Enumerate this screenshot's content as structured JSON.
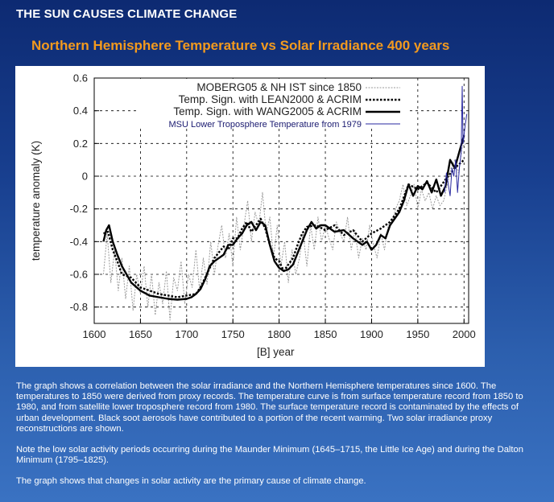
{
  "page": {
    "heading": "THE SUN CAUSES CLIMATE CHANGE",
    "chart_title": "Northern Hemisphere Temperature vs Solar Irradiance 400 years"
  },
  "caption": {
    "paragraph1": "The graph shows a correlation between the solar irradiance and the Northern Hemisphere temperatures since 1600. The temperatures to 1850 were derived from proxy records. The temperature curve is from surface temperature record from 1850 to 1980, and from satellite lower troposphere record from 1980. The surface temperature record is contaminated by the effects of urban development. Black soot aerosols have contributed to a portion of the recent warming. Two solar irradiance proxy reconstructions are shown.",
    "paragraph2": "Note the low solar activity periods occurring during the Maunder Minimum (1645–1715, the Little Ice Age) and during the Dalton Minimum (1795–1825).",
    "paragraph3": "The graph shows that changes in solar activity are the primary cause of climate change."
  },
  "colors": {
    "heading": "#ffffff",
    "chart_title": "#f39a1e",
    "background_top": "#0d2a72",
    "background_bottom": "#3a72c2",
    "grid": "#000000",
    "moberg": "#9a9a9a",
    "msu": "#2a2aa0"
  },
  "chart_data": {
    "type": "line",
    "xlabel": "[B]  year",
    "ylabel": "temperature anomaly (K)",
    "xlim": [
      1600,
      2005
    ],
    "ylim": [
      -0.9,
      0.6
    ],
    "grid": true,
    "grid_style": "dashed",
    "legend_position": "top-right",
    "x_ticks": [
      "1600",
      "1650",
      "1700",
      "1750",
      "1800",
      "1850",
      "1900",
      "1950",
      "2000"
    ],
    "y_ticks": [
      "0.6",
      "0.4",
      "0.2",
      "0",
      "-0.2",
      "-0.4",
      "-0.6",
      "-0.8"
    ],
    "series": [
      {
        "name": "MOBERG05 & NH IST since 1850",
        "style": "thin-gray",
        "x": [
          1610,
          1614,
          1618,
          1622,
          1626,
          1630,
          1634,
          1638,
          1642,
          1646,
          1650,
          1654,
          1658,
          1662,
          1666,
          1670,
          1674,
          1678,
          1682,
          1686,
          1690,
          1694,
          1698,
          1702,
          1706,
          1710,
          1714,
          1718,
          1722,
          1726,
          1730,
          1734,
          1738,
          1742,
          1746,
          1750,
          1754,
          1758,
          1762,
          1766,
          1770,
          1774,
          1778,
          1782,
          1786,
          1790,
          1794,
          1798,
          1802,
          1806,
          1810,
          1814,
          1818,
          1822,
          1826,
          1830,
          1834,
          1838,
          1842,
          1846,
          1850,
          1854,
          1858,
          1862,
          1866,
          1870,
          1874,
          1878,
          1882,
          1886,
          1890,
          1894,
          1898,
          1902,
          1906,
          1910,
          1914,
          1918,
          1922,
          1926,
          1930,
          1934,
          1938,
          1942,
          1946,
          1950,
          1954,
          1958,
          1962,
          1966,
          1970,
          1974,
          1978,
          1982,
          1986,
          1990,
          1994,
          1998,
          2002
        ],
        "values": [
          -0.6,
          -0.35,
          -0.65,
          -0.45,
          -0.7,
          -0.5,
          -0.75,
          -0.55,
          -0.82,
          -0.6,
          -0.72,
          -0.55,
          -0.8,
          -0.6,
          -0.85,
          -0.65,
          -0.78,
          -0.58,
          -0.88,
          -0.62,
          -0.7,
          -0.52,
          -0.78,
          -0.6,
          -0.68,
          -0.45,
          -0.7,
          -0.5,
          -0.66,
          -0.4,
          -0.6,
          -0.42,
          -0.3,
          -0.5,
          -0.35,
          -0.55,
          -0.25,
          -0.45,
          -0.3,
          -0.15,
          -0.4,
          -0.22,
          -0.3,
          -0.1,
          -0.35,
          -0.25,
          -0.5,
          -0.3,
          -0.55,
          -0.4,
          -0.65,
          -0.45,
          -0.6,
          -0.5,
          -0.35,
          -0.55,
          -0.3,
          -0.45,
          -0.25,
          -0.4,
          -0.3,
          -0.38,
          -0.45,
          -0.28,
          -0.35,
          -0.4,
          -0.25,
          -0.45,
          -0.33,
          -0.5,
          -0.38,
          -0.45,
          -0.3,
          -0.42,
          -0.5,
          -0.35,
          -0.45,
          -0.3,
          -0.28,
          -0.2,
          -0.15,
          -0.05,
          -0.18,
          -0.12,
          -0.05,
          -0.2,
          -0.08,
          -0.15,
          -0.1,
          -0.2,
          -0.12,
          -0.18,
          -0.15,
          -0.05,
          0.05,
          0.1,
          0.02,
          0.18,
          0.2
        ]
      },
      {
        "name": "Temp. Sign. with LEAN2000 & ACRIM",
        "style": "dotted-black",
        "x": [
          1610,
          1615,
          1620,
          1625,
          1630,
          1640,
          1650,
          1660,
          1670,
          1680,
          1690,
          1700,
          1710,
          1715,
          1720,
          1730,
          1740,
          1745,
          1750,
          1755,
          1760,
          1765,
          1770,
          1775,
          1780,
          1785,
          1790,
          1795,
          1800,
          1805,
          1810,
          1815,
          1820,
          1825,
          1830,
          1840,
          1850,
          1860,
          1870,
          1880,
          1890,
          1900,
          1910,
          1920,
          1930,
          1940,
          1950,
          1960,
          1970,
          1980,
          1990,
          2000
        ],
        "values": [
          -0.35,
          -0.34,
          -0.45,
          -0.52,
          -0.6,
          -0.62,
          -0.68,
          -0.7,
          -0.72,
          -0.73,
          -0.74,
          -0.73,
          -0.72,
          -0.68,
          -0.62,
          -0.5,
          -0.43,
          -0.45,
          -0.38,
          -0.38,
          -0.32,
          -0.28,
          -0.34,
          -0.3,
          -0.26,
          -0.32,
          -0.42,
          -0.5,
          -0.52,
          -0.58,
          -0.54,
          -0.5,
          -0.42,
          -0.35,
          -0.31,
          -0.3,
          -0.33,
          -0.3,
          -0.36,
          -0.33,
          -0.4,
          -0.35,
          -0.32,
          -0.28,
          -0.2,
          -0.05,
          -0.08,
          -0.04,
          -0.1,
          -0.02,
          0.05,
          0.1
        ]
      },
      {
        "name": "Temp. Sign. with WANG2005 & ACRIM",
        "style": "thick-black",
        "x": [
          1610,
          1613,
          1616,
          1620,
          1625,
          1630,
          1640,
          1650,
          1660,
          1670,
          1680,
          1690,
          1700,
          1705,
          1710,
          1715,
          1720,
          1725,
          1730,
          1735,
          1740,
          1745,
          1750,
          1755,
          1760,
          1765,
          1770,
          1775,
          1780,
          1785,
          1790,
          1795,
          1800,
          1805,
          1810,
          1815,
          1820,
          1825,
          1830,
          1835,
          1840,
          1845,
          1850,
          1860,
          1870,
          1880,
          1890,
          1895,
          1900,
          1905,
          1910,
          1915,
          1920,
          1930,
          1935,
          1940,
          1945,
          1950,
          1955,
          1960,
          1965,
          1970,
          1975,
          1980,
          1985,
          1990,
          1995,
          2000
        ],
        "values": [
          -0.4,
          -0.33,
          -0.3,
          -0.4,
          -0.48,
          -0.55,
          -0.65,
          -0.7,
          -0.73,
          -0.74,
          -0.75,
          -0.755,
          -0.75,
          -0.74,
          -0.72,
          -0.69,
          -0.63,
          -0.55,
          -0.52,
          -0.5,
          -0.48,
          -0.42,
          -0.42,
          -0.38,
          -0.35,
          -0.3,
          -0.28,
          -0.33,
          -0.28,
          -0.3,
          -0.42,
          -0.52,
          -0.56,
          -0.58,
          -0.57,
          -0.54,
          -0.47,
          -0.4,
          -0.33,
          -0.28,
          -0.32,
          -0.3,
          -0.3,
          -0.34,
          -0.33,
          -0.38,
          -0.42,
          -0.4,
          -0.45,
          -0.42,
          -0.36,
          -0.38,
          -0.3,
          -0.22,
          -0.15,
          -0.05,
          -0.12,
          -0.06,
          -0.08,
          -0.03,
          -0.1,
          -0.02,
          -0.12,
          -0.06,
          0.1,
          0.05,
          0.15,
          0.25
        ]
      },
      {
        "name": "MSU Lower Troposphere Temperature from 1979",
        "style": "thin-blue",
        "x": [
          1979,
          1981,
          1983,
          1985,
          1987,
          1989,
          1991,
          1993,
          1995,
          1997,
          1998,
          1999,
          2001,
          2003
        ],
        "values": [
          -0.1,
          0.02,
          -0.05,
          -0.12,
          0.05,
          0.0,
          0.1,
          -0.1,
          0.05,
          0.15,
          0.55,
          0.2,
          0.3,
          0.38
        ]
      }
    ]
  }
}
